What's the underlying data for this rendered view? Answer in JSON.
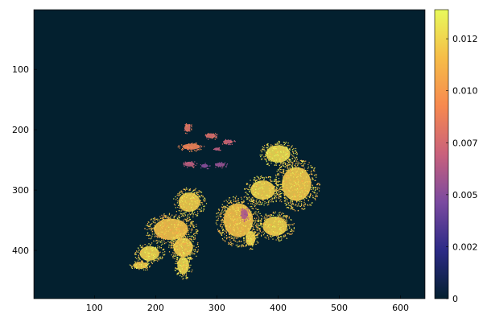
{
  "chart_data": {
    "type": "heatmap",
    "title": "",
    "xlabel": "",
    "ylabel": "",
    "x_ticks": [
      100,
      200,
      300,
      400,
      500,
      600
    ],
    "y_ticks": [
      100,
      200,
      300,
      400
    ],
    "xlim": [
      1,
      640
    ],
    "ylim": [
      480,
      1
    ],
    "y_axis_inverted": true,
    "grid": false,
    "background_color": "#03202f",
    "colorbar": {
      "ticks": [
        {
          "value": 0,
          "label": "0"
        },
        {
          "value": 0.0025,
          "label": "0.002"
        },
        {
          "value": 0.005,
          "label": "0.005"
        },
        {
          "value": 0.0075,
          "label": "0.007"
        },
        {
          "value": 0.01,
          "label": "0.010"
        },
        {
          "value": 0.0125,
          "label": "0.012"
        }
      ],
      "range": [
        0,
        0.0139
      ],
      "colormap": "thermal",
      "colors": [
        "#03202f",
        "#2c2a86",
        "#7a4aa0",
        "#c9617c",
        "#f7894f",
        "#f6bd48",
        "#e8fa5b"
      ]
    },
    "regions": [
      {
        "cx": 225,
        "cy": 365,
        "rx": 35,
        "ry": 22,
        "value": 0.0118
      },
      {
        "cx": 255,
        "cy": 320,
        "rx": 22,
        "ry": 20,
        "value": 0.0122
      },
      {
        "cx": 245,
        "cy": 395,
        "rx": 20,
        "ry": 20,
        "value": 0.0121
      },
      {
        "cx": 190,
        "cy": 405,
        "rx": 20,
        "ry": 15,
        "value": 0.0125
      },
      {
        "cx": 175,
        "cy": 425,
        "rx": 15,
        "ry": 7,
        "value": 0.0122
      },
      {
        "cx": 245,
        "cy": 425,
        "rx": 12,
        "ry": 18,
        "value": 0.0126
      },
      {
        "cx": 335,
        "cy": 350,
        "rx": 30,
        "ry": 35,
        "value": 0.0118
      },
      {
        "cx": 375,
        "cy": 300,
        "rx": 25,
        "ry": 20,
        "value": 0.0124
      },
      {
        "cx": 430,
        "cy": 290,
        "rx": 30,
        "ry": 35,
        "value": 0.0121
      },
      {
        "cx": 395,
        "cy": 360,
        "rx": 25,
        "ry": 20,
        "value": 0.0123
      },
      {
        "cx": 400,
        "cy": 240,
        "rx": 25,
        "ry": 18,
        "value": 0.0128
      },
      {
        "cx": 355,
        "cy": 380,
        "rx": 10,
        "ry": 15,
        "value": 0.0124
      },
      {
        "cx": 252,
        "cy": 197,
        "rx": 6,
        "ry": 8,
        "value": 0.0082
      },
      {
        "cx": 258,
        "cy": 228,
        "rx": 18,
        "ry": 6,
        "value": 0.0089
      },
      {
        "cx": 290,
        "cy": 210,
        "rx": 10,
        "ry": 5,
        "value": 0.0078
      },
      {
        "cx": 255,
        "cy": 257,
        "rx": 10,
        "ry": 5,
        "value": 0.0066
      },
      {
        "cx": 345,
        "cy": 340,
        "rx": 7,
        "ry": 10,
        "value": 0.0061
      },
      {
        "cx": 305,
        "cy": 258,
        "rx": 10,
        "ry": 4,
        "value": 0.0055
      },
      {
        "cx": 300,
        "cy": 232,
        "rx": 6,
        "ry": 3,
        "value": 0.0066
      },
      {
        "cx": 280,
        "cy": 260,
        "rx": 7,
        "ry": 4,
        "value": 0.005
      },
      {
        "cx": 318,
        "cy": 220,
        "rx": 10,
        "ry": 4,
        "value": 0.0072
      }
    ]
  }
}
